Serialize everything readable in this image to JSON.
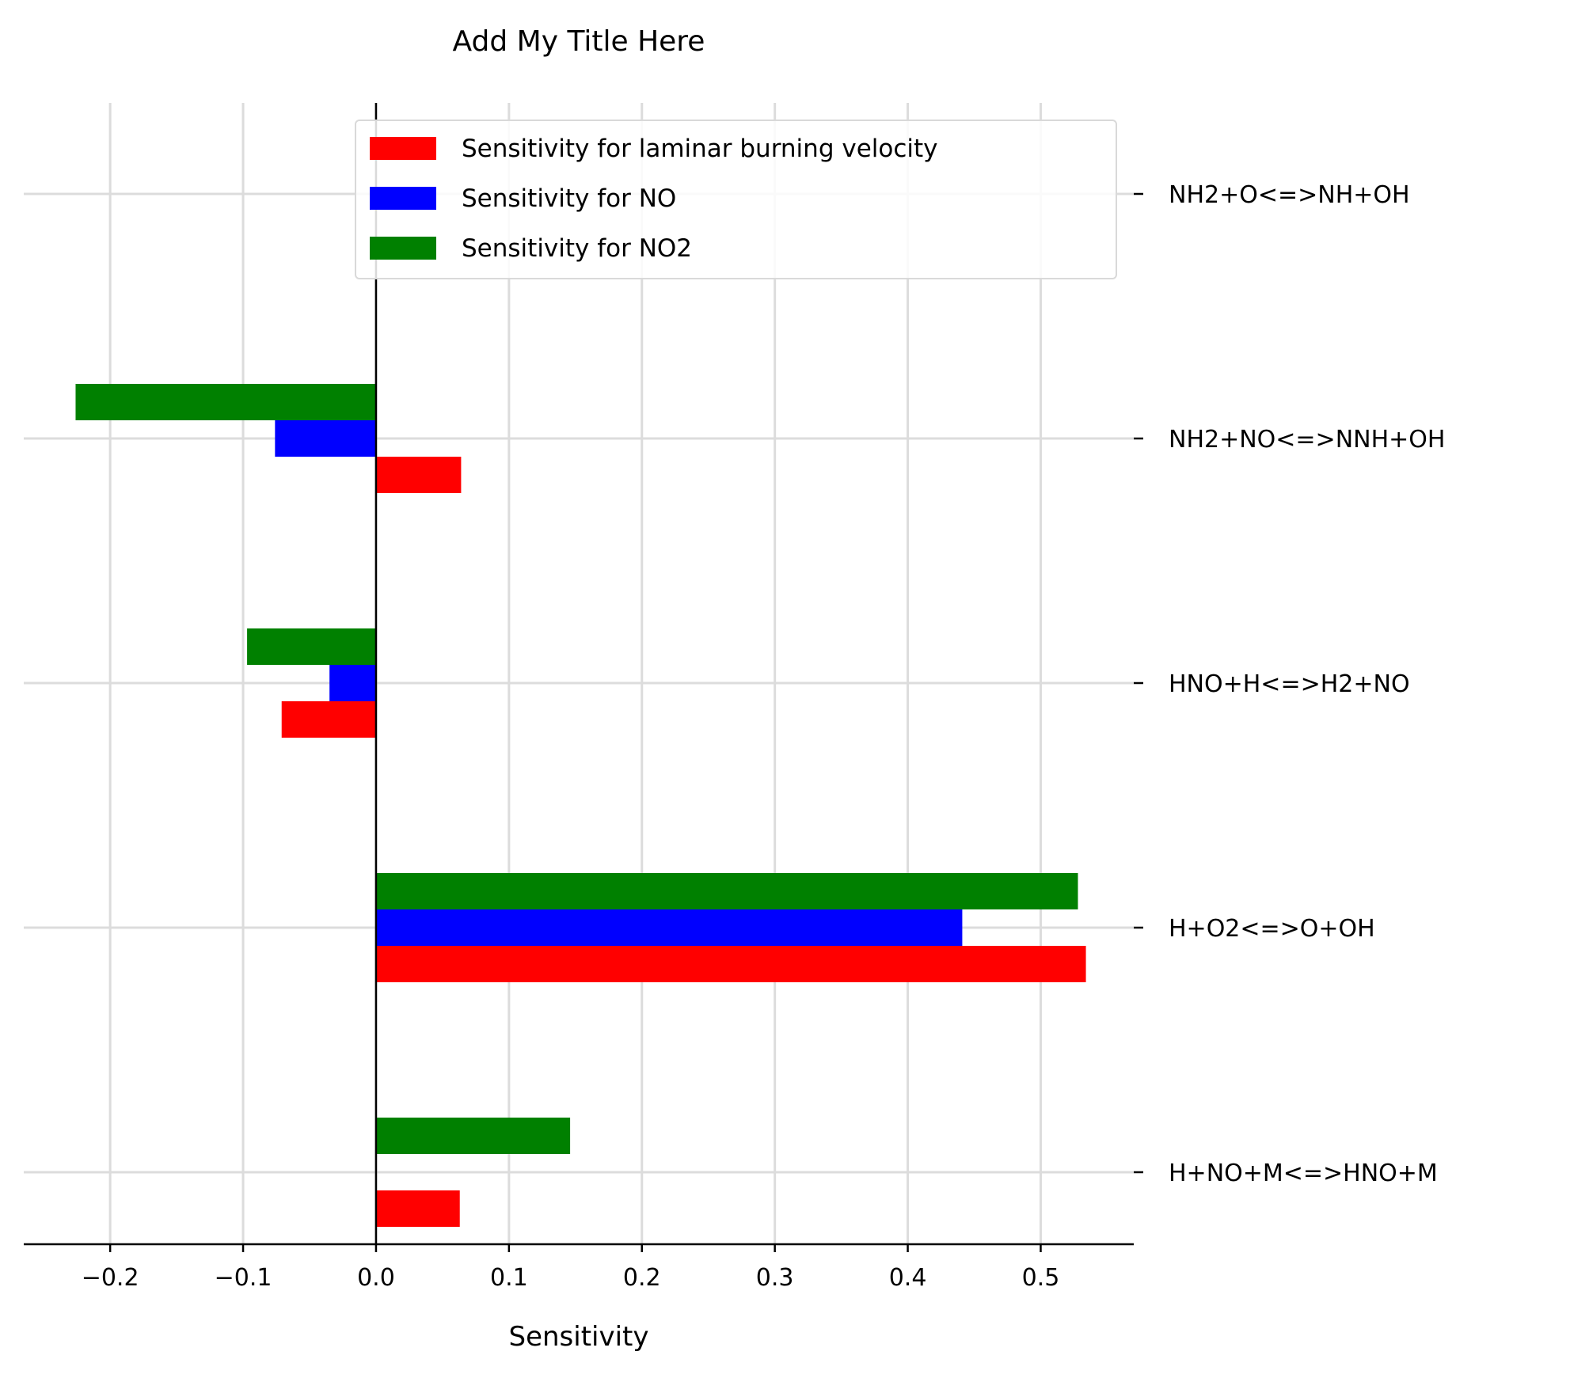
{
  "chart_data": {
    "type": "bar",
    "orientation": "horizontal",
    "title": "Add My Title Here",
    "xlabel": "Sensitivity",
    "ylabel": "",
    "xlim": [
      -0.265,
      0.57
    ],
    "xticks": [
      -0.2,
      -0.1,
      0.0,
      0.1,
      0.2,
      0.3,
      0.4,
      0.5
    ],
    "xtick_labels": [
      "−0.2",
      "−0.1",
      "0.0",
      "0.1",
      "0.2",
      "0.3",
      "0.4",
      "0.5"
    ],
    "categories": [
      "NH2+O<=>NH+OH",
      "NH2+NO<=>NNH+OH",
      "HNO+H<=>H2+NO",
      "H+O2<=>O+OH",
      "H+NO+M<=>HNO+M"
    ],
    "series": [
      {
        "name": "Sensitivity for laminar burning velocity",
        "color": "#ff0000",
        "values": [
          0.0,
          0.064,
          -0.071,
          0.534,
          0.063
        ]
      },
      {
        "name": "Sensitivity for NO",
        "color": "#0000ff",
        "values": [
          0.0,
          -0.076,
          -0.035,
          0.441,
          0.0
        ]
      },
      {
        "name": "Sensitivity for NO2",
        "color": "#008000",
        "values": [
          0.0,
          -0.226,
          -0.097,
          0.528,
          0.146
        ]
      }
    ],
    "grid": true,
    "legend_position": "top-right"
  }
}
